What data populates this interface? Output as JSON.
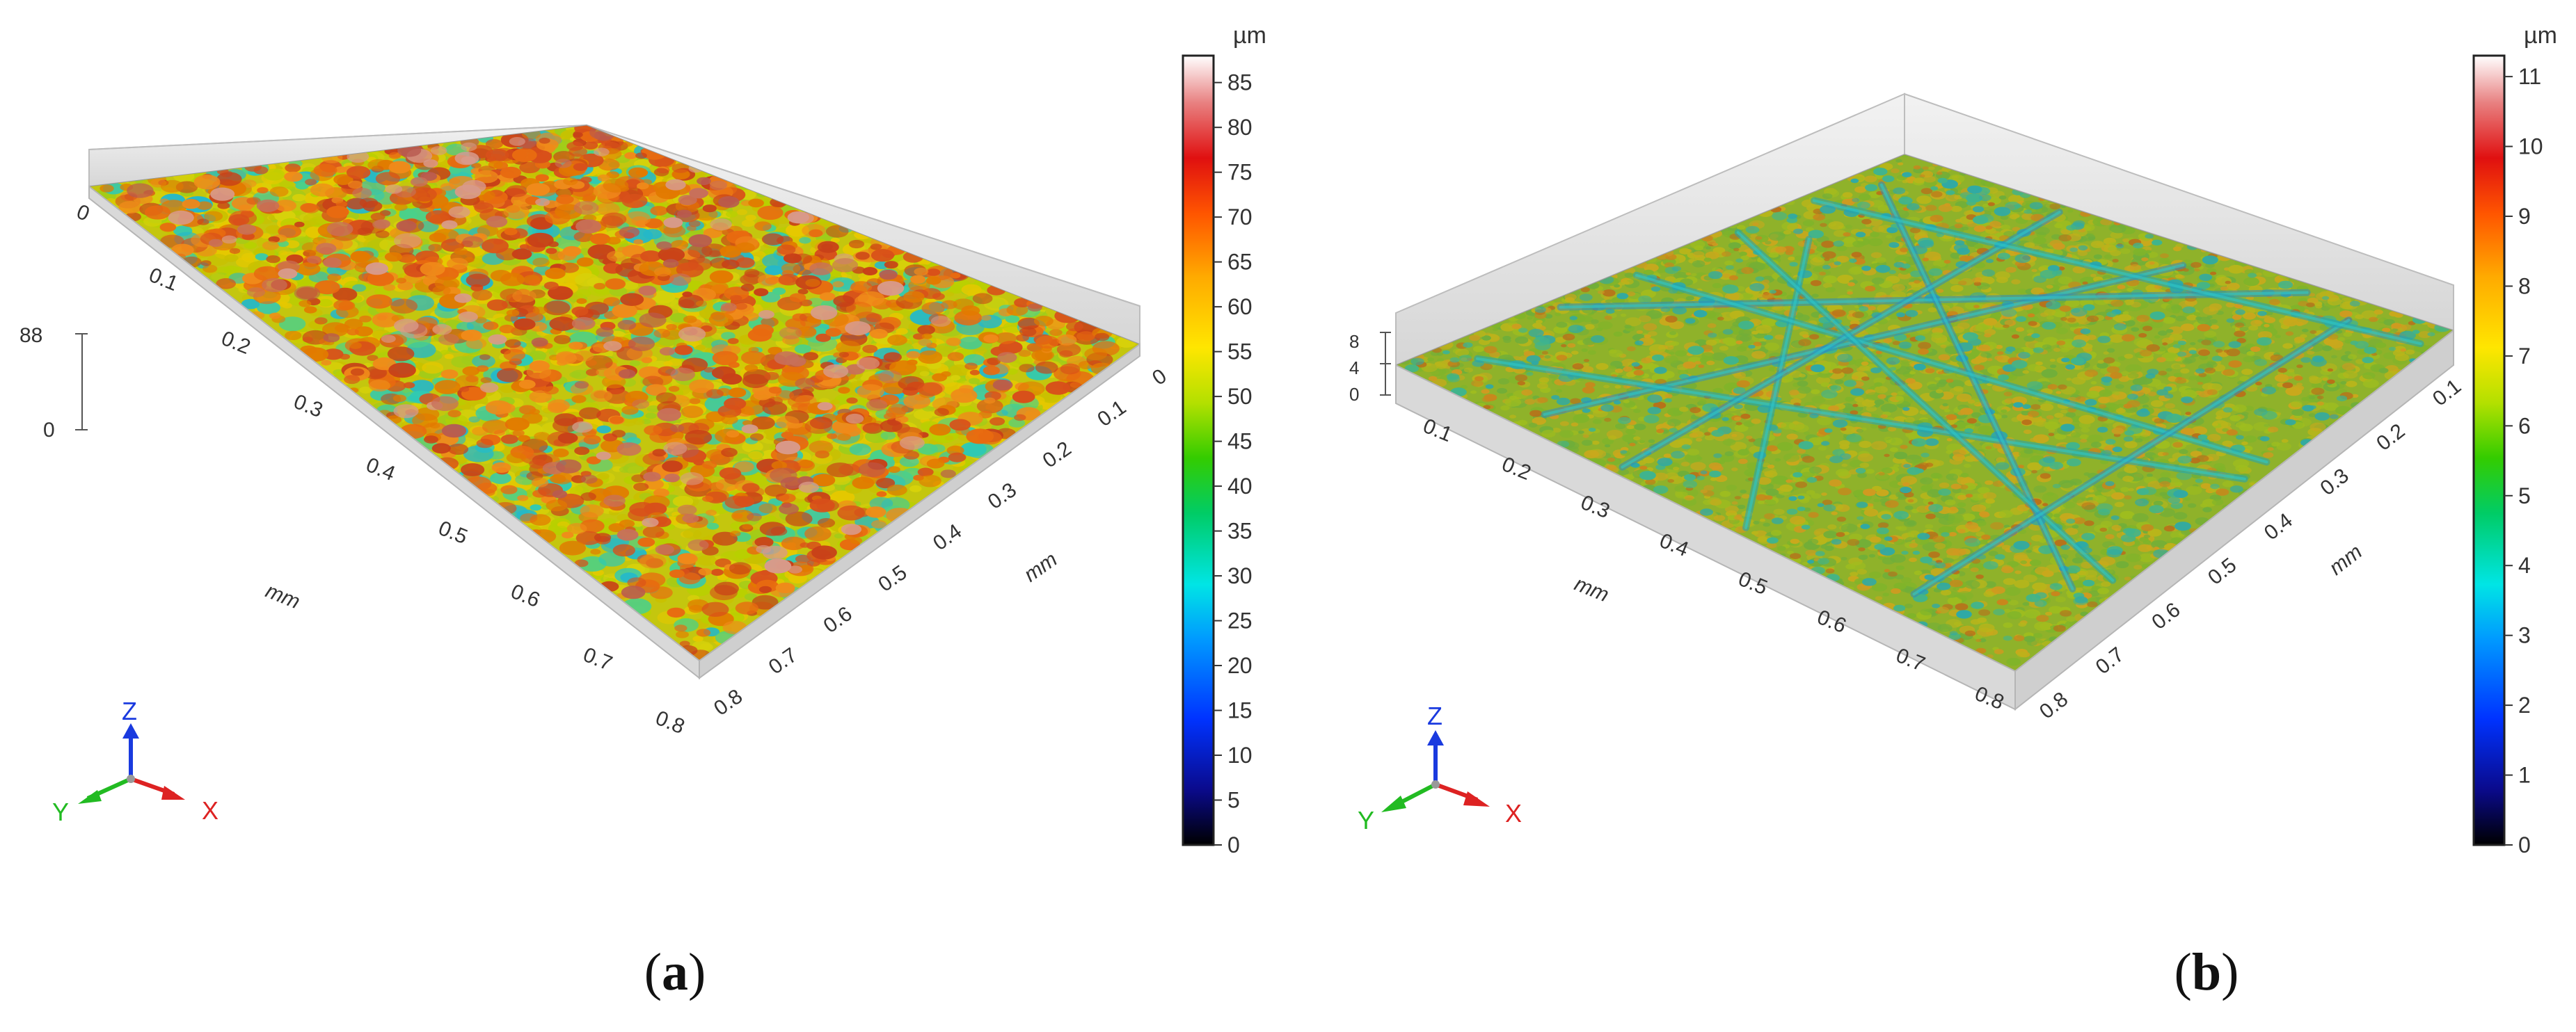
{
  "panels": [
    {
      "id": "a",
      "caption_letter": "a",
      "colorbar_unit": "µm",
      "colorbar_ticks": [
        "85",
        "80",
        "75",
        "70",
        "65",
        "60",
        "55",
        "50",
        "45",
        "40",
        "35",
        "30",
        "25",
        "20",
        "15",
        "10",
        "5",
        "0"
      ],
      "colorbar_min": 0,
      "colorbar_max": 88,
      "z_axis_labels": [
        "88",
        "0"
      ],
      "x_axis_ticks": [
        "0",
        "0.1",
        "0.2",
        "0.3",
        "0.4",
        "0.5",
        "0.6",
        "0.7",
        "0.8"
      ],
      "y_axis_ticks": [
        "0",
        "0.1",
        "0.2",
        "0.3",
        "0.4",
        "0.5",
        "0.6",
        "0.7",
        "0.8"
      ],
      "x_axis_unit": "mm",
      "y_axis_unit": "mm",
      "triad_labels": {
        "z": "Z",
        "y": "Y",
        "x": "X"
      },
      "surface_texture": "rough-peaks"
    },
    {
      "id": "b",
      "caption_letter": "b",
      "colorbar_unit": "µm",
      "colorbar_ticks": [
        "11",
        "10",
        "9",
        "8",
        "7",
        "6",
        "5",
        "4",
        "3",
        "2",
        "1",
        "0"
      ],
      "colorbar_min": 0,
      "colorbar_max": 11.3,
      "z_axis_labels": [
        "8",
        "4",
        "0"
      ],
      "x_axis_ticks": [
        "0.1",
        "0.2",
        "0.3",
        "0.4",
        "0.5",
        "0.6",
        "0.7",
        "0.8"
      ],
      "y_axis_ticks": [
        "0.1",
        "0.2",
        "0.3",
        "0.4",
        "0.5",
        "0.6",
        "0.7",
        "0.8"
      ],
      "x_axis_unit": "mm",
      "y_axis_unit": "mm",
      "triad_labels": {
        "z": "Z",
        "y": "Y",
        "x": "X"
      },
      "surface_texture": "scratched-grooves"
    }
  ],
  "colors": {
    "colormap": [
      "#000000",
      "#0a0a8c",
      "#0033ff",
      "#0099ff",
      "#00e5e5",
      "#00cc66",
      "#33cc00",
      "#b3e000",
      "#ffe600",
      "#ffaa00",
      "#ff5500",
      "#e01010",
      "#e88080",
      "#ffffff"
    ],
    "triad_z": "#1a3adf",
    "triad_y": "#22bb22",
    "triad_x": "#dd2222"
  }
}
